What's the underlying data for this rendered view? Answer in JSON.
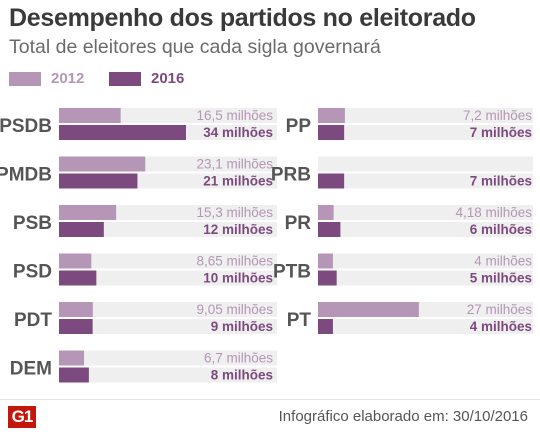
{
  "title": "Desempenho dos partidos no eleitorado",
  "subtitle": "Total de eleitores que cada sigla governará",
  "logo": "G1",
  "credit": "Infográfico elaborado em: 30/10/2016",
  "colors": {
    "y2012": "#b596b6",
    "y2016": "#7c4a7e",
    "track": "#efefef",
    "party": "#555555"
  },
  "chart_data": {
    "type": "bar",
    "orientation": "horizontal",
    "unit": "milhões",
    "xlim": [
      0,
      34
    ],
    "legend": {
      "placement": "top-left"
    },
    "series": [
      {
        "name": "2012",
        "key": "y2012"
      },
      {
        "name": "2016",
        "key": "y2016"
      }
    ],
    "columns": [
      [
        {
          "party": "PSDB",
          "v2012": 16.5,
          "l2012": "16,5 milhões",
          "v2016": 34,
          "l2016": "34 milhões"
        },
        {
          "party": "PMDB",
          "v2012": 23.1,
          "l2012": "23,1 milhões",
          "v2016": 21,
          "l2016": "21 milhões"
        },
        {
          "party": "PSB",
          "v2012": 15.3,
          "l2012": "15,3 milhões",
          "v2016": 12,
          "l2016": "12 milhões"
        },
        {
          "party": "PSD",
          "v2012": 8.65,
          "l2012": "8,65 milhões",
          "v2016": 10,
          "l2016": "10 milhões"
        },
        {
          "party": "PDT",
          "v2012": 9.05,
          "l2012": "9,05 milhões",
          "v2016": 9,
          "l2016": "9 milhões"
        },
        {
          "party": "DEM",
          "v2012": 6.7,
          "l2012": "6,7 milhões",
          "v2016": 8,
          "l2016": "8 milhões"
        }
      ],
      [
        {
          "party": "PP",
          "v2012": 7.2,
          "l2012": "7,2 milhões",
          "v2016": 7,
          "l2016": "7 milhões"
        },
        {
          "party": "PRB",
          "v2012": 0,
          "l2012": "",
          "v2016": 7,
          "l2016": "7 milhões"
        },
        {
          "party": "PR",
          "v2012": 4.18,
          "l2012": "4,18 milhões",
          "v2016": 6,
          "l2016": "6 milhões"
        },
        {
          "party": "PTB",
          "v2012": 4,
          "l2012": "4 milhões",
          "v2016": 5,
          "l2016": "5 milhões"
        },
        {
          "party": "PT",
          "v2012": 27,
          "l2012": "27 milhões",
          "v2016": 4,
          "l2016": "4 milhões"
        }
      ]
    ]
  }
}
